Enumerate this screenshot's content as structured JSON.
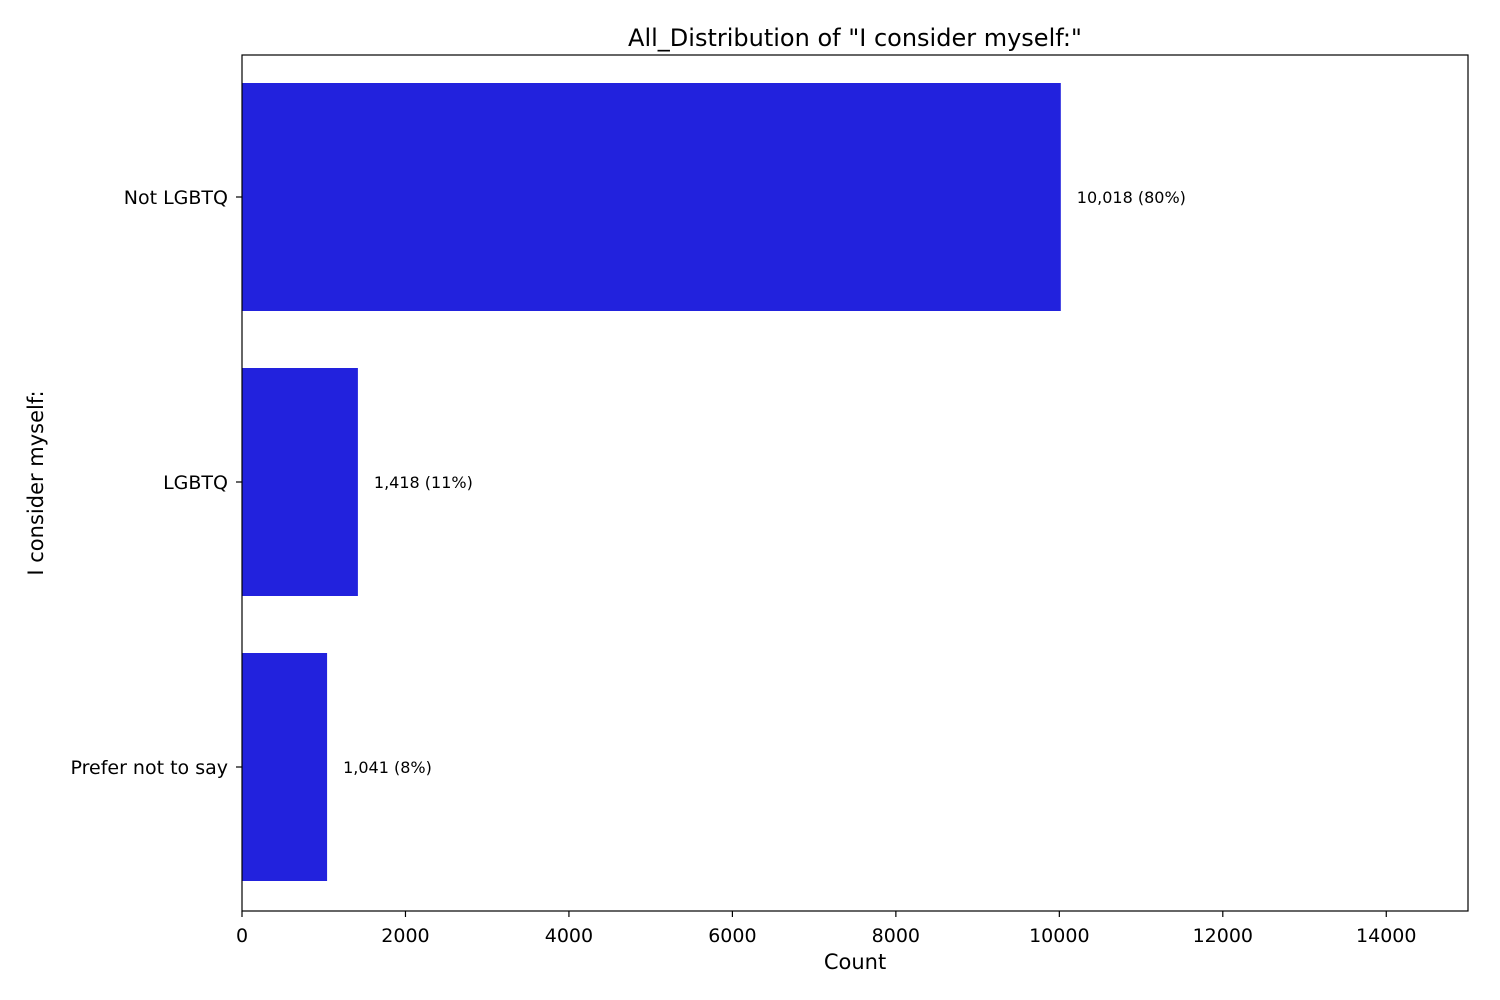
{
  "chart_data": {
    "type": "bar",
    "orientation": "horizontal",
    "title": "All_Distribution of \"I consider myself:\"",
    "xlabel": "Count",
    "ylabel": "I consider myself:",
    "categories": [
      "Not LGBTQ",
      "LGBTQ",
      "Prefer not to say"
    ],
    "values": [
      10018,
      1418,
      1041
    ],
    "data_labels": [
      "10,018 (80%)",
      "1,418 (11%)",
      "1,041 (8%)"
    ],
    "xlim": [
      0,
      15000
    ],
    "xticks": [
      0,
      2000,
      4000,
      6000,
      8000,
      10000,
      12000,
      14000
    ],
    "xtick_labels": [
      "0",
      "2000",
      "4000",
      "6000",
      "8000",
      "10000",
      "12000",
      "14000"
    ],
    "grid": false,
    "bar_color": "#2222dd"
  }
}
